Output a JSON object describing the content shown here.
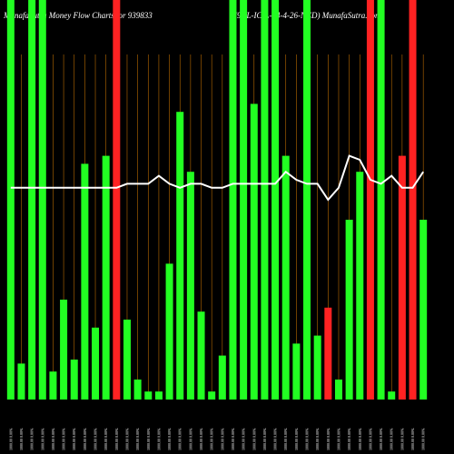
{
  "chart_data": {
    "type": "bar",
    "title": "MunafaSutra  Money Flow  Charts for 939833",
    "subtitle": "(9CL-IC-L-24-4-26-NCD) MunafaSutra.com",
    "categories": [
      "1000.00 0.00%",
      "1000.00 0.00%",
      "1000.00 0.00%",
      "1000.00 0.00%",
      "1000.00 0.00%",
      "1000.00 0.00%",
      "1000.00 0.00%",
      "1000.00 0.00%",
      "1000.00 0.00%",
      "1000.00 0.00%",
      "1000.00 0.00%",
      "1000.00 0.00%",
      "1000.00 0.00%",
      "1000.00 0.00%",
      "1000.00 0.00%",
      "1000.00 0.00%",
      "1000.00 0.00%",
      "1000.00 0.00%",
      "1000.00 0.00%",
      "1000.00 0.00%",
      "1000.00 0.00%",
      "1000.00 0.00%",
      "1000.00 0.00%",
      "1000.00 0.00%",
      "1000.00 0.00%",
      "1000.00 0.00%",
      "1000.00 0.00%",
      "1000.00 0.00%",
      "1000.00 0.00%",
      "1000.00 0.00%",
      "1000.00 0.00%",
      "1000.00 0.00%",
      "1000.00 0.00%",
      "1000.00 0.00%",
      "1000.00 0.00%",
      "1000.00 0.00%",
      "1000.00 0.00%",
      "1000.00 0.00%",
      "1000.00 0.00%",
      "1000.00 0.00%"
    ],
    "values": [
      100,
      9,
      100,
      100,
      7,
      25,
      10,
      59,
      18,
      61,
      100,
      20,
      5,
      2,
      2,
      34,
      72,
      57,
      22,
      2,
      11,
      100,
      100,
      74,
      100,
      100,
      61,
      14,
      100,
      16,
      23,
      5,
      45,
      57,
      100,
      100,
      2,
      61,
      100,
      45
    ],
    "colors": [
      "#22ff22",
      "#22ff22",
      "#22ff22",
      "#22ff22",
      "#22ff22",
      "#22ff22",
      "#22ff22",
      "#22ff22",
      "#22ff22",
      "#22ff22",
      "#ff2222",
      "#22ff22",
      "#22ff22",
      "#22ff22",
      "#22ff22",
      "#22ff22",
      "#22ff22",
      "#22ff22",
      "#22ff22",
      "#22ff22",
      "#22ff22",
      "#22ff22",
      "#22ff22",
      "#22ff22",
      "#22ff22",
      "#22ff22",
      "#22ff22",
      "#22ff22",
      "#22ff22",
      "#22ff22",
      "#ff2222",
      "#22ff22",
      "#22ff22",
      "#22ff22",
      "#ff2222",
      "#22ff22",
      "#22ff22",
      "#ff2222",
      "#ff2222",
      "#22ff22"
    ],
    "line": {
      "color": "#ffffff",
      "values": [
        53,
        53,
        53,
        53,
        53,
        53,
        53,
        53,
        53,
        53,
        53,
        54,
        54,
        54,
        56,
        54,
        53,
        54,
        54,
        53,
        53,
        54,
        54,
        54,
        54,
        54,
        57,
        55,
        54,
        54,
        50,
        53,
        61,
        60,
        55,
        54,
        56,
        53,
        53,
        57
      ]
    },
    "ylim": [
      0,
      100
    ],
    "grid_color": "#b86a00"
  }
}
